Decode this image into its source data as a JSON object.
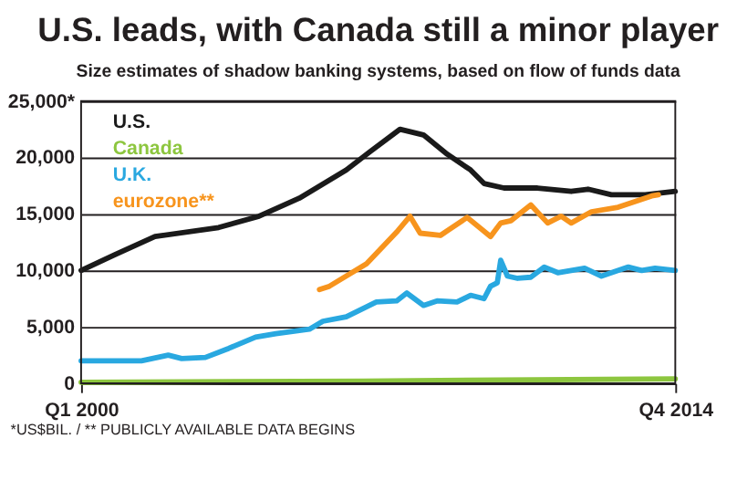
{
  "chart_data": {
    "type": "line",
    "title": "U.S. leads, with Canada still a minor player",
    "subtitle": "Size estimates of shadow banking systems, based on flow of funds data",
    "annotations": [
      "*US$BIL. / ** PUBLICLY AVAILABLE DATA BEGINS"
    ],
    "xlim": [
      "2000-01",
      "2014-10"
    ],
    "xticks": [
      {
        "value": "2000-01",
        "label": "Q1 2000"
      },
      {
        "value": "2014-10",
        "label": "Q4 2014"
      }
    ],
    "ylim": [
      0,
      25000
    ],
    "yticks": [
      0,
      {
        "value": 5000,
        "label": "5,000"
      },
      {
        "value": 10000,
        "label": "10,000"
      },
      {
        "value": 15000,
        "label": "15,000"
      },
      {
        "value": 20000,
        "label": "20,000"
      },
      {
        "value": 25000,
        "label": "25,000*"
      }
    ],
    "grid": "y",
    "legend": "top left",
    "line_style": "solid",
    "marker": "none",
    "series": [
      {
        "name": "U.S.",
        "color": "#1a1a1a",
        "x": [
          "2000-01",
          "2000-11",
          "2001-11",
          "2003-06",
          "2004-06",
          "2005-06",
          "2006-08",
          "2007-03",
          "2007-12",
          "2008-07",
          "2009-02",
          "2009-09",
          "2010-01",
          "2010-07",
          "2011-05",
          "2012-03",
          "2012-08",
          "2013-03",
          "2014-01",
          "2014-10"
        ],
        "values": [
          10000,
          11400,
          13000,
          13800,
          14800,
          16400,
          18900,
          20500,
          22500,
          22000,
          20300,
          18900,
          17700,
          17300,
          17300,
          17000,
          17200,
          16700,
          16700,
          17000
        ]
      },
      {
        "name": "Canada",
        "color": "#8dc63f",
        "x": [
          "2000-01",
          "2007-01",
          "2014-10"
        ],
        "values": [
          100,
          200,
          400
        ]
      },
      {
        "name": "U.K.",
        "color": "#29a8e0",
        "x": [
          "2000-01",
          "2001-07",
          "2002-03",
          "2002-07",
          "2003-02",
          "2003-09",
          "2004-05",
          "2004-11",
          "2005-09",
          "2006-01",
          "2006-08",
          "2007-05",
          "2007-11",
          "2008-02",
          "2008-07",
          "2008-11",
          "2009-05",
          "2009-09",
          "2010-01",
          "2010-03",
          "2010-05",
          "2010-06",
          "2010-08",
          "2010-11",
          "2011-03",
          "2011-07",
          "2011-11",
          "2012-07",
          "2012-12",
          "2013-08",
          "2013-12",
          "2014-04",
          "2014-10"
        ],
        "values": [
          2000,
          2000,
          2500,
          2200,
          2300,
          3100,
          4100,
          4400,
          4800,
          5500,
          5900,
          7200,
          7300,
          8000,
          6900,
          7300,
          7200,
          7800,
          7500,
          8600,
          8900,
          10900,
          9500,
          9300,
          9400,
          10300,
          9800,
          10200,
          9500,
          10300,
          10000,
          10200,
          10000
        ]
      },
      {
        "name": "eurozone**",
        "color": "#f7941d",
        "x": [
          "2005-12",
          "2006-03",
          "2007-02",
          "2007-11",
          "2008-03",
          "2008-06",
          "2008-12",
          "2009-08",
          "2010-03",
          "2010-06",
          "2010-09",
          "2011-03",
          "2011-08",
          "2011-12",
          "2012-03",
          "2012-09",
          "2013-05",
          "2014-03",
          "2014-05"
        ],
        "values": [
          8300,
          8600,
          10600,
          13400,
          14800,
          13300,
          13100,
          14700,
          13000,
          14200,
          14400,
          15800,
          14200,
          14800,
          14200,
          15200,
          15600,
          16600,
          16700
        ]
      }
    ]
  }
}
